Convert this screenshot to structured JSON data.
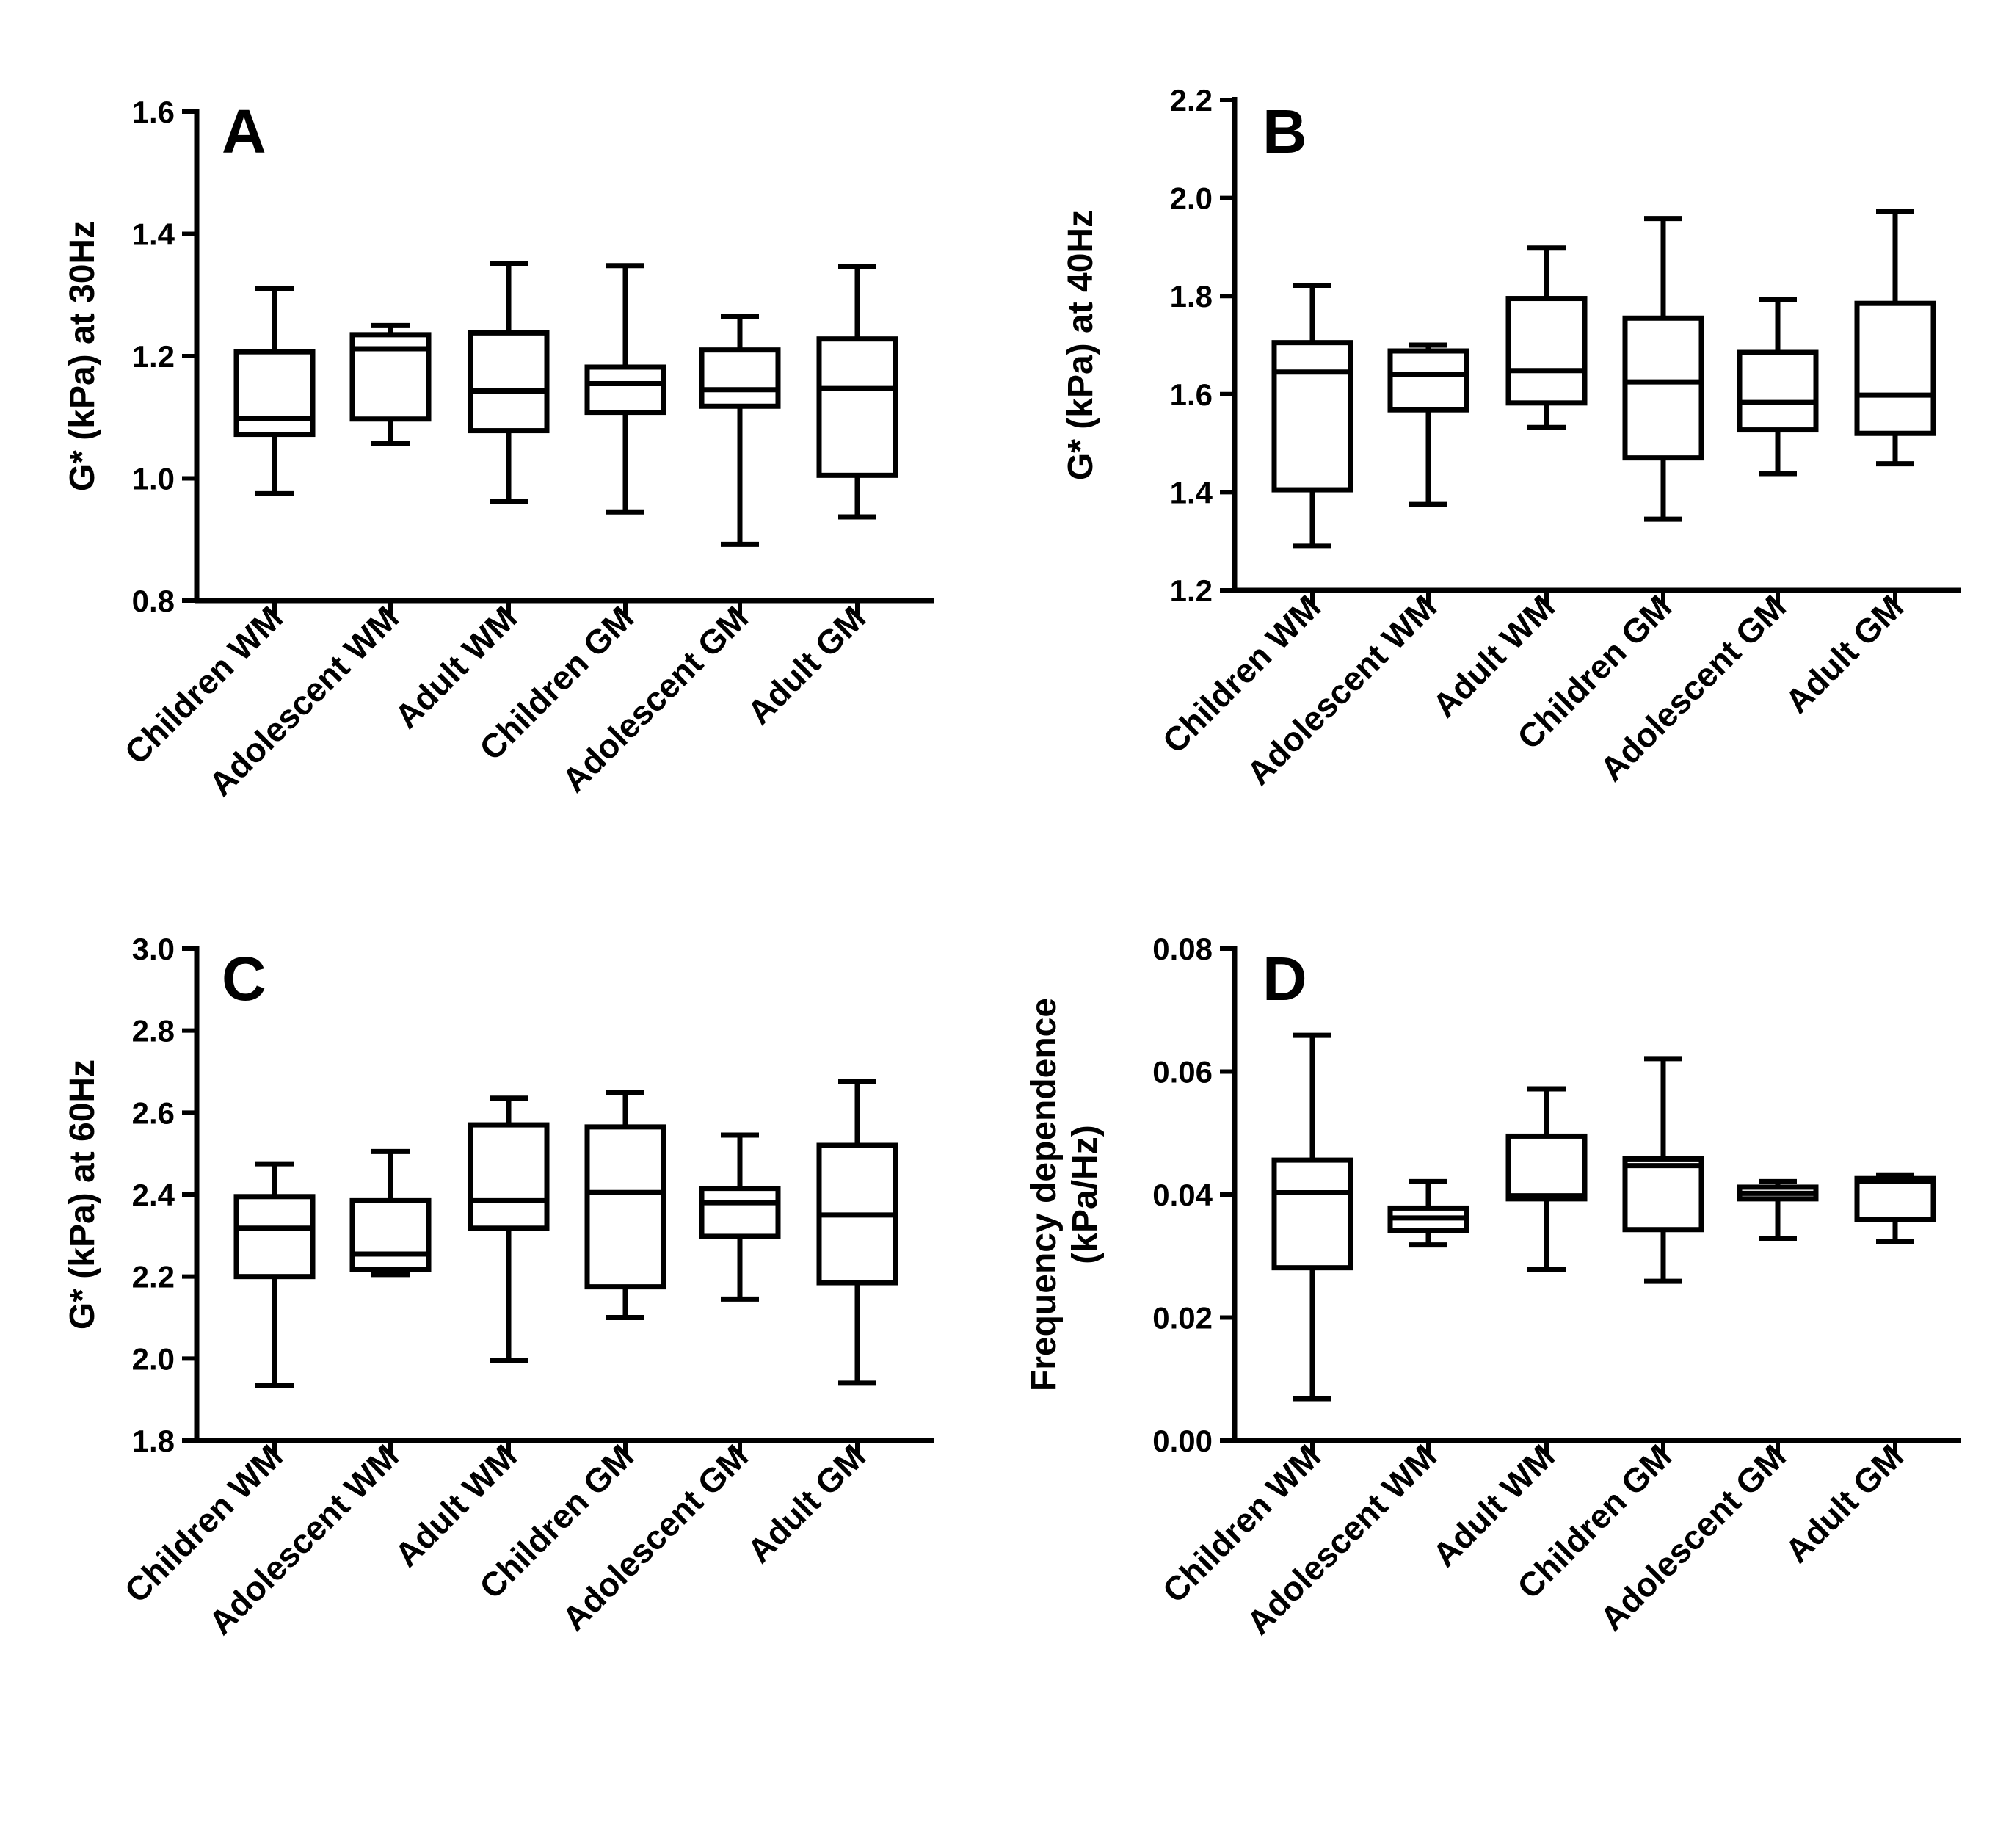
{
  "figure": {
    "colors": {
      "stroke": "#000000",
      "background": "#ffffff"
    }
  },
  "chart_data": [
    {
      "type": "box",
      "panel": "A",
      "title": "",
      "xlabel": "",
      "ylabel": "G* (kPa) at 30Hz",
      "ylabel_lines": [
        "G* (kPa) at 30Hz"
      ],
      "ylim": [
        0.8,
        1.6
      ],
      "yticks": [
        0.8,
        1.0,
        1.2,
        1.4,
        1.6
      ],
      "ytick_labels": [
        "0.8",
        "1.0",
        "1.2",
        "1.4",
        "1.6"
      ],
      "categories": [
        "Children WM",
        "Adolescent  WM",
        "Adult WM",
        "Children GM",
        "Adolescent GM",
        "Adult GM"
      ],
      "series": [
        {
          "name": "Children WM",
          "min": 0.975,
          "q1": 1.072,
          "median": 1.098,
          "q3": 1.207,
          "max": 1.31
        },
        {
          "name": "Adolescent  WM",
          "min": 1.057,
          "q1": 1.097,
          "median": 1.212,
          "q3": 1.235,
          "max": 1.25
        },
        {
          "name": "Adult WM",
          "min": 0.962,
          "q1": 1.078,
          "median": 1.143,
          "q3": 1.238,
          "max": 1.352
        },
        {
          "name": "Children GM",
          "min": 0.945,
          "q1": 1.108,
          "median": 1.155,
          "q3": 1.182,
          "max": 1.348
        },
        {
          "name": "Adolescent GM",
          "min": 0.892,
          "q1": 1.118,
          "median": 1.145,
          "q3": 1.21,
          "max": 1.265
        },
        {
          "name": "Adult GM",
          "min": 0.937,
          "q1": 1.005,
          "median": 1.147,
          "q3": 1.228,
          "max": 1.347
        }
      ]
    },
    {
      "type": "box",
      "panel": "B",
      "title": "",
      "xlabel": "",
      "ylabel": "G* (kPa) at 40Hz",
      "ylabel_lines": [
        "G* (kPa) at 40Hz"
      ],
      "ylim": [
        1.2,
        2.2
      ],
      "yticks": [
        1.2,
        1.4,
        1.6,
        1.8,
        2.0,
        2.2
      ],
      "ytick_labels": [
        "1.2",
        "1.4",
        "1.6",
        "1.8",
        "2.0",
        "2.2"
      ],
      "categories": [
        "Children WM",
        "Adolescent  WM",
        "Adult WM",
        "Children GM",
        "Adolescent GM",
        "Adult GM"
      ],
      "series": [
        {
          "name": "Children WM",
          "min": 1.29,
          "q1": 1.405,
          "median": 1.645,
          "q3": 1.705,
          "max": 1.822
        },
        {
          "name": "Adolescent  WM",
          "min": 1.375,
          "q1": 1.568,
          "median": 1.64,
          "q3": 1.688,
          "max": 1.7
        },
        {
          "name": "Adult WM",
          "min": 1.532,
          "q1": 1.582,
          "median": 1.648,
          "q3": 1.795,
          "max": 1.898
        },
        {
          "name": "Children GM",
          "min": 1.345,
          "q1": 1.47,
          "median": 1.625,
          "q3": 1.755,
          "max": 1.958
        },
        {
          "name": "Adolescent GM",
          "min": 1.438,
          "q1": 1.527,
          "median": 1.583,
          "q3": 1.685,
          "max": 1.792
        },
        {
          "name": "Adult GM",
          "min": 1.458,
          "q1": 1.52,
          "median": 1.598,
          "q3": 1.785,
          "max": 1.972
        }
      ]
    },
    {
      "type": "box",
      "panel": "C",
      "title": "",
      "xlabel": "",
      "ylabel": "G* (kPa) at 60Hz",
      "ylabel_lines": [
        "G* (kPa) at 60Hz"
      ],
      "ylim": [
        1.8,
        3.0
      ],
      "yticks": [
        1.8,
        2.0,
        2.2,
        2.4,
        2.6,
        2.8,
        3.0
      ],
      "ytick_labels": [
        "1.8",
        "2.0",
        "2.2",
        "2.4",
        "2.6",
        "2.8",
        "3.0"
      ],
      "categories": [
        "Children WM",
        "Adolescent  WM",
        "Adult WM",
        "Children GM",
        "Adolescent GM",
        "Adult GM"
      ],
      "series": [
        {
          "name": "Children WM",
          "min": 1.935,
          "q1": 2.2,
          "median": 2.318,
          "q3": 2.395,
          "max": 2.475
        },
        {
          "name": "Adolescent  WM",
          "min": 2.205,
          "q1": 2.218,
          "median": 2.255,
          "q3": 2.385,
          "max": 2.505
        },
        {
          "name": "Adult WM",
          "min": 1.995,
          "q1": 2.318,
          "median": 2.385,
          "q3": 2.57,
          "max": 2.635
        },
        {
          "name": "Children GM",
          "min": 2.1,
          "q1": 2.175,
          "median": 2.405,
          "q3": 2.565,
          "max": 2.648
        },
        {
          "name": "Adolescent GM",
          "min": 2.145,
          "q1": 2.298,
          "median": 2.38,
          "q3": 2.415,
          "max": 2.545
        },
        {
          "name": "Adult GM",
          "min": 1.94,
          "q1": 2.185,
          "median": 2.35,
          "q3": 2.52,
          "max": 2.675
        }
      ]
    },
    {
      "type": "box",
      "panel": "D",
      "title": "",
      "xlabel": "",
      "ylabel": "Frequency dependence (kPa/Hz)",
      "ylabel_lines": [
        "Frequency dependence",
        "(kPa/Hz)"
      ],
      "ylim": [
        0.0,
        0.08
      ],
      "yticks": [
        0.0,
        0.02,
        0.04,
        0.06,
        0.08
      ],
      "ytick_labels": [
        "0.00",
        "0.02",
        "0.04",
        "0.06",
        "0.08"
      ],
      "categories": [
        "Children WM",
        "Adolescent  WM",
        "Adult WM",
        "Children GM",
        "Adolescent GM",
        "Adult GM"
      ],
      "series": [
        {
          "name": "Children WM",
          "min": 0.0068,
          "q1": 0.0281,
          "median": 0.0403,
          "q3": 0.0456,
          "max": 0.0659
        },
        {
          "name": "Adolescent  WM",
          "min": 0.0318,
          "q1": 0.0342,
          "median": 0.0362,
          "q3": 0.0378,
          "max": 0.0421
        },
        {
          "name": "Adult WM",
          "min": 0.0278,
          "q1": 0.0393,
          "median": 0.0398,
          "q3": 0.0495,
          "max": 0.0572
        },
        {
          "name": "Children GM",
          "min": 0.0259,
          "q1": 0.0343,
          "median": 0.0447,
          "q3": 0.0458,
          "max": 0.0621
        },
        {
          "name": "Adolescent GM",
          "min": 0.0329,
          "q1": 0.0393,
          "median": 0.0402,
          "q3": 0.0412,
          "max": 0.0421
        },
        {
          "name": "Adult GM",
          "min": 0.0323,
          "q1": 0.036,
          "median": 0.0422,
          "q3": 0.0426,
          "max": 0.0432
        }
      ]
    }
  ]
}
